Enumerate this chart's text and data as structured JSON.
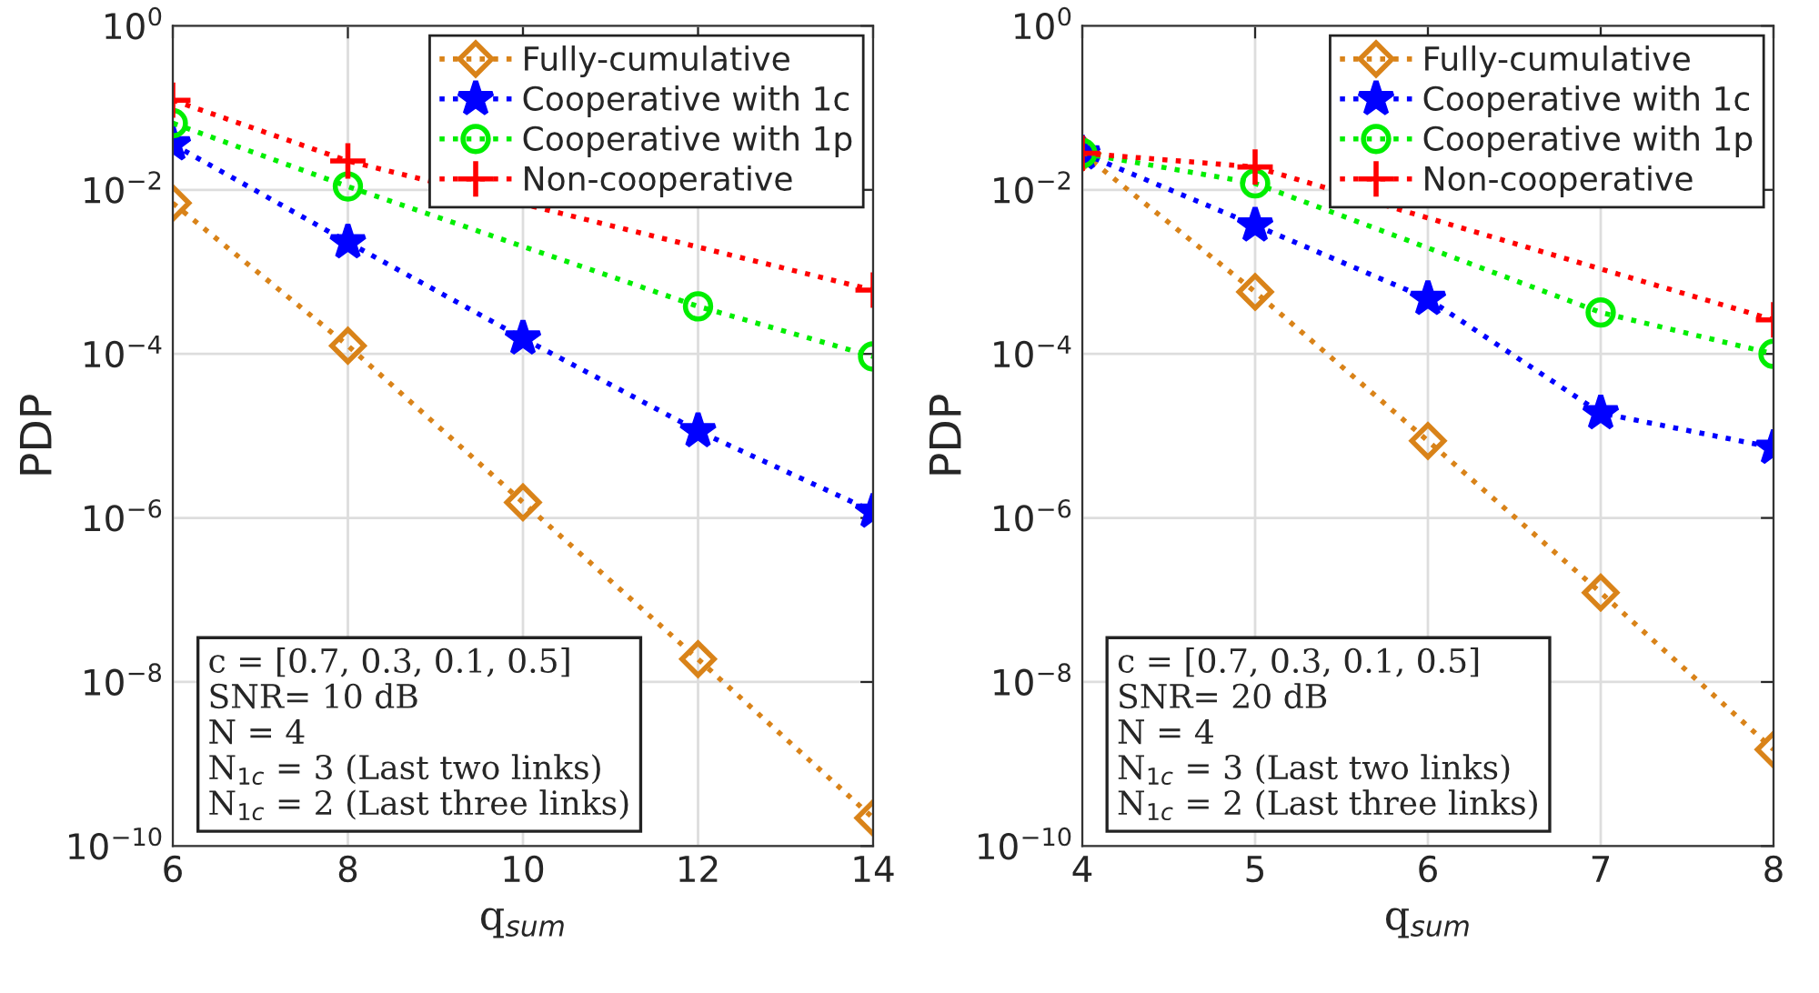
{
  "chart_data": [
    {
      "type": "line",
      "x": [
        6,
        8,
        10,
        12,
        14
      ],
      "xlabel": "q$_{sum}$",
      "ylabel": "PDP",
      "log": true,
      "xlim": [
        6,
        14
      ],
      "xticks": [
        6,
        8,
        10,
        12,
        14
      ],
      "ylim": [
        1e-10,
        1
      ],
      "yticks": [
        {
          "value": 1e-10,
          "label": "10$^{−10}$"
        },
        {
          "value": 1e-08,
          "label": "10$^{−8}$"
        },
        {
          "value": 1e-06,
          "label": "10$^{−6}$"
        },
        {
          "value": 0.0001,
          "label": "10$^{−4}$"
        },
        {
          "value": 0.01,
          "label": "10$^{−2}$"
        },
        {
          "value": 1,
          "label": "10$^{0}$"
        }
      ],
      "grid": true,
      "legend": "top right",
      "line_style": "dotted",
      "series": [
        {
          "name": "Fully-cumulative",
          "color": "#d98319",
          "marker": "diamond",
          "values": [
            0.0069,
            0.000126,
            1.55e-06,
            1.9e-08,
            2.2e-10
          ]
        },
        {
          "name": "Cooperative with 1c",
          "color": "#0000ff",
          "marker": "star",
          "values": [
            0.036,
            0.0023,
            0.000155,
            1.15e-05,
            1.2e-06
          ]
        },
        {
          "name": "Cooperative with 1p",
          "color": "#00ee00",
          "marker": "circle",
          "values": [
            0.065,
            0.011,
            null,
            0.00038,
            9.3e-05
          ]
        },
        {
          "name": "Non-cooperative",
          "color": "#ff0000",
          "marker": "cross",
          "values": [
            0.124,
            0.0225,
            null,
            null,
            0.0006
          ]
        }
      ],
      "annotations": [
        "c = [0.7, 0.3, 0.1, 0.5]",
        "SNR= 10 dB",
        "N = 4",
        "N$_{1c}$ = 3 (Last two links)",
        "N$_{1c}$ = 2 (Last three links)"
      ]
    },
    {
      "type": "line",
      "x": [
        4,
        5,
        6,
        7,
        8
      ],
      "xlabel": "q$_{sum}$",
      "ylabel": "PDP",
      "log": true,
      "xlim": [
        4,
        8
      ],
      "xticks": [
        4,
        5,
        6,
        7,
        8
      ],
      "ylim": [
        1e-10,
        1
      ],
      "yticks": [
        {
          "value": 1e-10,
          "label": "10$^{−10}$"
        },
        {
          "value": 1e-08,
          "label": "10$^{−8}$"
        },
        {
          "value": 1e-06,
          "label": "10$^{−6}$"
        },
        {
          "value": 0.0001,
          "label": "10$^{−4}$"
        },
        {
          "value": 0.01,
          "label": "10$^{−2}$"
        },
        {
          "value": 1,
          "label": "10$^{0}$"
        }
      ],
      "grid": true,
      "legend": "top right",
      "line_style": "dotted",
      "series": [
        {
          "name": "Fully-cumulative",
          "color": "#d98319",
          "marker": "diamond",
          "values": [
            0.028,
            0.00057,
            8.7e-06,
            1.23e-07,
            1.5e-09
          ]
        },
        {
          "name": "Cooperative with 1c",
          "color": "#0000ff",
          "marker": "star",
          "values": [
            0.028,
            0.0037,
            0.00047,
            1.9e-05,
            7.2e-06
          ]
        },
        {
          "name": "Cooperative with 1p",
          "color": "#00ee00",
          "marker": "circle",
          "values": [
            0.028,
            0.012,
            null,
            0.00032,
            0.0001
          ]
        },
        {
          "name": "Non-cooperative",
          "color": "#ff0000",
          "marker": "cross",
          "values": [
            0.028,
            0.019,
            null,
            null,
            0.00026
          ]
        }
      ],
      "annotations": [
        "c = [0.7, 0.3, 0.1, 0.5]",
        "SNR= 20 dB",
        "N = 4",
        "N$_{1c}$ = 3 (Last two links)",
        "N$_{1c}$ = 2 (Last three links)"
      ]
    }
  ]
}
